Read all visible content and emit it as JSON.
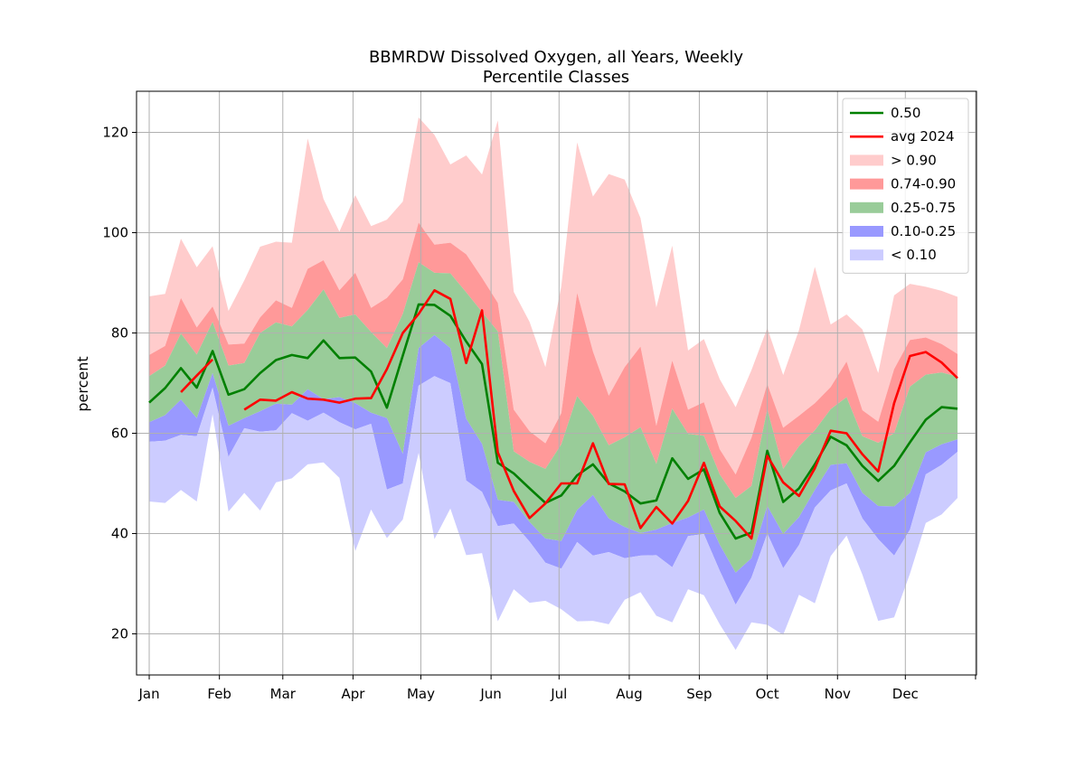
{
  "chart_data": {
    "type": "area",
    "title": "BBMRDW Dissolved Oxygen, all Years, Weekly",
    "subtitle": "Percentile Classes",
    "xlabel": "",
    "ylabel": "percent",
    "ylim": [
      11.8,
      128.2
    ],
    "yticks": [
      20,
      40,
      60,
      80,
      100,
      120
    ],
    "xlim": [
      -0.8,
      52.2
    ],
    "month_ticks": [
      {
        "label": "Jan",
        "week": 0
      },
      {
        "label": "Feb",
        "week": 4.43
      },
      {
        "label": "Mar",
        "week": 8.43
      },
      {
        "label": "Apr",
        "week": 12.86
      },
      {
        "label": "May",
        "week": 17.14
      },
      {
        "label": "Jun",
        "week": 21.57
      },
      {
        "label": "Jul",
        "week": 25.86
      },
      {
        "label": "Aug",
        "week": 30.29
      },
      {
        "label": "Sep",
        "week": 34.71
      },
      {
        "label": "Oct",
        "week": 39
      },
      {
        "label": "Nov",
        "week": 43.43
      },
      {
        "label": "Dec",
        "week": 47.71
      },
      {
        "label": "",
        "week": 52.14
      }
    ],
    "grid": true,
    "legend_position": "top-right",
    "colors": {
      "median": "#008000",
      "avg": "#ff0000",
      "gt90": "#ffcccc",
      "p74_90": "#ff9999",
      "p25_75": "#99cc99",
      "p10_25": "#9999ff",
      "lt10": "#ccccff"
    },
    "legend": [
      {
        "label": "0.50",
        "kind": "line",
        "color": "#008000"
      },
      {
        "label": "avg 2024",
        "kind": "line",
        "color": "#ff0000"
      },
      {
        "label": "> 0.90",
        "kind": "patch",
        "color": "#ffcccc"
      },
      {
        "label": "0.74-0.90",
        "kind": "patch",
        "color": "#ff9999"
      },
      {
        "label": "0.25-0.75",
        "kind": "patch",
        "color": "#99cc99"
      },
      {
        "label": "0.10-0.25",
        "kind": "patch",
        "color": "#9999ff"
      },
      {
        "label": "< 0.10",
        "kind": "patch",
        "color": "#ccccff"
      }
    ],
    "weeks": [
      0,
      1,
      2,
      3,
      4,
      5,
      6,
      7,
      8,
      9,
      10,
      11,
      12,
      13,
      14,
      15,
      16,
      17,
      18,
      19,
      20,
      21,
      22,
      23,
      24,
      25,
      26,
      27,
      28,
      29,
      30,
      31,
      32,
      33,
      34,
      35,
      36,
      37,
      38,
      39,
      40,
      41,
      42,
      43,
      44,
      45,
      46,
      47,
      48,
      49,
      50,
      51
    ],
    "max": [
      87.3,
      87.8,
      98.8,
      93.1,
      97.3,
      84.4,
      90.5,
      97.2,
      98.2,
      98.0,
      118.8,
      106.7,
      100.2,
      107.5,
      101.3,
      102.6,
      106.2,
      123.0,
      119.5,
      113.6,
      115.4,
      111.6,
      122.4,
      88.2,
      82.2,
      73.2,
      89.3,
      118.0,
      107.2,
      111.7,
      110.6,
      102.9,
      85.1,
      97.4,
      76.5,
      78.8,
      70.8,
      65.2,
      72.6,
      81.0,
      71.6,
      80.6,
      93.2,
      81.7,
      83.7,
      80.7,
      72.0,
      87.5,
      89.8,
      89.2,
      88.4,
      87.2
    ],
    "p90": [
      75.6,
      77.4,
      87.0,
      81.1,
      85.3,
      77.7,
      77.9,
      83.1,
      86.5,
      85.0,
      92.8,
      94.5,
      88.5,
      92.0,
      85.0,
      87.0,
      90.7,
      102.0,
      97.6,
      98.0,
      95.7,
      91.0,
      86.0,
      64.7,
      60.4,
      58.0,
      64.0,
      88.0,
      76.3,
      67.5,
      73.2,
      77.3,
      61.5,
      74.5,
      64.7,
      66.2,
      56.8,
      51.8,
      59.1,
      69.8,
      61.1,
      63.5,
      66.0,
      69.2,
      74.3,
      64.6,
      62.3,
      72.8,
      78.6,
      79.1,
      77.8,
      75.8
    ],
    "p75": [
      71.4,
      73.5,
      79.9,
      75.7,
      82.2,
      73.5,
      74.0,
      80.0,
      82.1,
      81.3,
      84.6,
      88.7,
      83.0,
      83.7,
      80.2,
      77.0,
      83.8,
      94.1,
      92.0,
      91.9,
      88.1,
      84.2,
      80.3,
      56.4,
      54.3,
      52.9,
      57.8,
      67.4,
      63.5,
      57.6,
      59.2,
      61.2,
      53.9,
      64.9,
      59.9,
      59.5,
      51.8,
      47.1,
      49.5,
      64.8,
      52.9,
      57.4,
      60.6,
      64.8,
      67.2,
      59.4,
      58.1,
      60.0,
      69.3,
      71.7,
      72.1,
      71.3
    ],
    "p25": [
      62.2,
      63.6,
      66.7,
      63.0,
      72.0,
      61.5,
      63.0,
      64.4,
      65.9,
      65.7,
      68.8,
      66.8,
      67.2,
      66.0,
      64.1,
      63.0,
      55.9,
      77.0,
      79.6,
      77.0,
      62.9,
      57.9,
      46.7,
      46.3,
      42.3,
      39.0,
      38.5,
      44.7,
      47.7,
      43.0,
      41.3,
      40.1,
      40.8,
      42.1,
      43.2,
      44.8,
      37.8,
      32.2,
      35.1,
      45.5,
      39.9,
      43.3,
      48.7,
      53.7,
      54.0,
      48.1,
      45.5,
      45.4,
      48.1,
      56.2,
      57.8,
      58.8
    ],
    "p10": [
      58.3,
      58.5,
      59.7,
      59.4,
      69.1,
      55.3,
      61.0,
      60.3,
      60.6,
      64.0,
      62.5,
      64.1,
      62.2,
      60.8,
      61.9,
      48.8,
      50.0,
      69.5,
      71.4,
      70.0,
      50.6,
      48.3,
      41.5,
      42.0,
      38.4,
      34.2,
      33.0,
      38.3,
      35.6,
      36.3,
      35.1,
      35.6,
      35.7,
      33.3,
      39.5,
      39.9,
      32.6,
      25.8,
      31.2,
      40.0,
      33.1,
      37.7,
      45.2,
      48.6,
      50.0,
      43.0,
      38.9,
      35.6,
      40.8,
      51.8,
      53.7,
      56.3
    ],
    "min": [
      46.4,
      46.1,
      48.7,
      46.4,
      63.8,
      44.4,
      48.1,
      44.6,
      50.2,
      51.0,
      53.8,
      54.2,
      51.1,
      36.5,
      44.8,
      39.1,
      42.8,
      56.1,
      38.9,
      45.0,
      35.7,
      36.1,
      22.5,
      28.9,
      26.2,
      26.6,
      24.9,
      22.5,
      22.6,
      21.9,
      26.8,
      28.3,
      23.6,
      22.3,
      28.9,
      27.7,
      21.9,
      16.8,
      22.3,
      21.8,
      19.8,
      27.8,
      26.1,
      35.5,
      39.6,
      31.8,
      22.6,
      23.3,
      32.0,
      42.1,
      43.8,
      47.1
    ],
    "series": [
      {
        "name": "0.50",
        "values": [
          66.1,
          69.0,
          73.0,
          69.1,
          76.4,
          67.7,
          68.8,
          72.0,
          74.6,
          75.6,
          75.0,
          78.5,
          75.0,
          75.1,
          72.3,
          65.1,
          75.5,
          85.7,
          85.6,
          83.4,
          78.3,
          73.8,
          54.1,
          52.0,
          49.0,
          46.1,
          47.6,
          51.6,
          53.8,
          50.0,
          48.4,
          46.0,
          46.6,
          55.0,
          50.9,
          52.8,
          44.1,
          39.0,
          40.2,
          56.5,
          46.3,
          49.0,
          53.8,
          59.3,
          57.6,
          53.5,
          50.5,
          53.5,
          58.2,
          62.7,
          65.2,
          64.9
        ]
      },
      {
        "name": "avg 2024",
        "values": [
          null,
          null,
          68.2,
          71.5,
          74.7,
          null,
          64.7,
          66.7,
          66.5,
          68.2,
          66.9,
          66.7,
          66.1,
          66.9,
          67.0,
          72.8,
          80.0,
          83.8,
          88.5,
          86.8,
          74.0,
          84.5,
          56.2,
          48.5,
          43.1,
          46.0,
          50.0,
          50.0,
          58.0,
          49.9,
          49.8,
          41.1,
          45.3,
          42.0,
          46.5,
          54.1,
          45.4,
          42.5,
          39.0,
          55.5,
          50.2,
          47.5,
          53.0,
          60.5,
          60.0,
          55.8,
          52.4,
          66.0,
          75.4,
          76.2,
          74.1,
          71.0
        ]
      }
    ]
  }
}
